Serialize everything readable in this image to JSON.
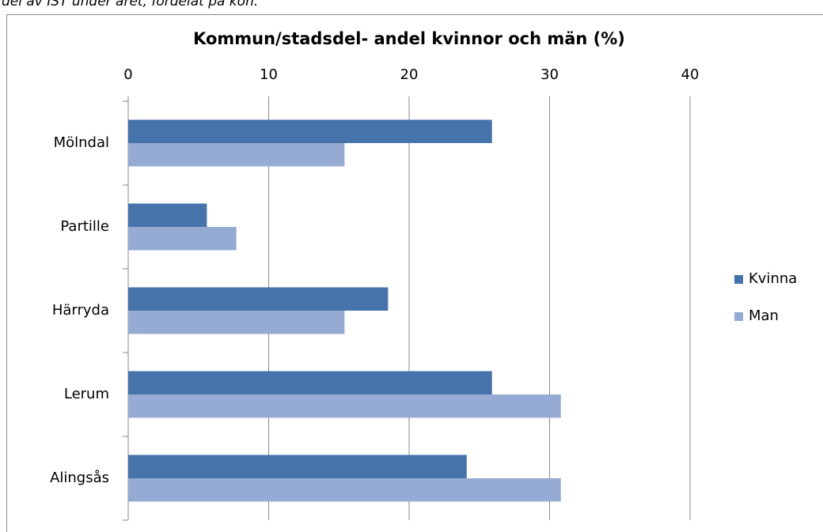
{
  "caption": "del av IST under året, fördelat på kön.",
  "chart_data": {
    "type": "bar",
    "orientation": "horizontal",
    "title": "Kommun/stadsdel- andel kvinnor och män (%)",
    "categories": [
      "Mölndal",
      "Partille",
      "Härryda",
      "Lerum",
      "Alingsås"
    ],
    "series": [
      {
        "name": "Kvinna",
        "color": "#4673a9",
        "values": [
          25.9,
          5.6,
          18.5,
          25.9,
          24.1
        ]
      },
      {
        "name": "Man",
        "color": "#95abd3",
        "values": [
          15.4,
          7.7,
          15.4,
          30.8,
          30.8
        ]
      }
    ],
    "xlim": [
      0,
      40
    ],
    "xticks": [
      0,
      10,
      20,
      30,
      40
    ],
    "grid": true,
    "legend": "right"
  }
}
